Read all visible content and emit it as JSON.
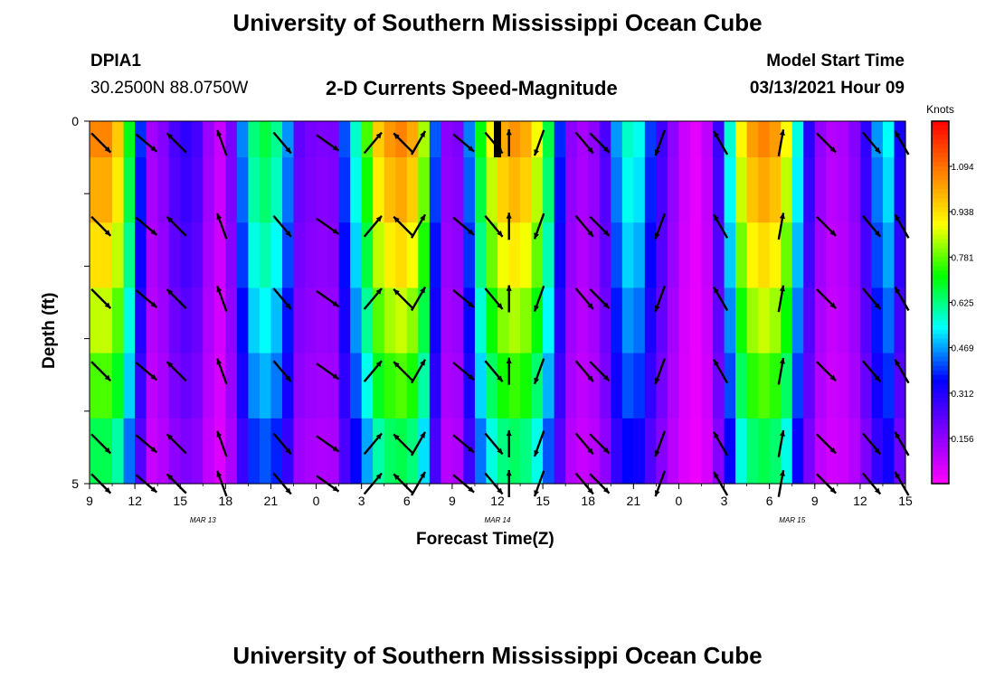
{
  "header": {
    "title_top": "University of Southern Mississippi Ocean Cube",
    "title_bottom": "University of Southern Mississippi Ocean Cube",
    "station_id": "DPIA1",
    "station_coords": "30.2500N 88.0750W",
    "plot_title": "2-D Currents Speed-Magnitude",
    "model_start_label": "Model Start Time",
    "model_start_value": "03/13/2021 Hour 09"
  },
  "chart_data": {
    "type": "heatmap",
    "title": "2-D Currents Speed-Magnitude",
    "xlabel": "Forecast Time(Z)",
    "ylabel": "Depth (ft)",
    "x_ticks": [
      "9",
      "12",
      "15",
      "18",
      "21",
      "0",
      "3",
      "6",
      "9",
      "12",
      "15",
      "18",
      "21",
      "0",
      "3",
      "6",
      "9",
      "12",
      "15"
    ],
    "x_range_hours": [
      0,
      54
    ],
    "date_labels": [
      {
        "label": "MAR 13",
        "hour": 7.5
      },
      {
        "label": "MAR 14",
        "hour": 27
      },
      {
        "label": "MAR 15",
        "hour": 46.5
      }
    ],
    "y_ticks": [
      "0",
      "5"
    ],
    "ylim": [
      0,
      5
    ],
    "colorbar": {
      "unit": "Knots",
      "tick_labels": [
        "1.094",
        "0.938",
        "0.781",
        "0.625",
        "0.469",
        "0.312",
        "0.156"
      ],
      "tick_values": [
        1.094,
        0.938,
        0.781,
        0.625,
        0.469,
        0.312,
        0.156
      ],
      "range": [
        0,
        1.25
      ]
    },
    "depth_layers": 5,
    "time_columns": 72,
    "surface_speed_by_hour": [
      1.05,
      1.08,
      0.95,
      0.55,
      0.12,
      0.18,
      0.3,
      0.28,
      0.12,
      0.05,
      0.42,
      0.66,
      0.68,
      0.5,
      0.18,
      0.2,
      0.15,
      0.45,
      0.65,
      0.95,
      1.05,
      1.08,
      0.9,
      0.35,
      0.05,
      0.4,
      0.75,
      0.98,
      1.05,
      1.0,
      0.82,
      0.42,
      0.13,
      0.12,
      0.22,
      0.5,
      0.62,
      0.42,
      0.25,
      0.1,
      0.03,
      0.1,
      0.38,
      0.88,
      1.05,
      1.08,
      0.95,
      0.5,
      0.18,
      0.1,
      0.12,
      0.2,
      0.45,
      0.55,
      0.2
    ],
    "layer_factors": [
      1.0,
      0.95,
      0.88,
      0.8,
      0.72,
      0.62
    ],
    "missing_data_marker": {
      "hour": 27.0,
      "depth_ft": 0.5,
      "color": "#000000"
    },
    "arrow_columns_hours": [
      1,
      4,
      6,
      9,
      13,
      16,
      19,
      21,
      22,
      25,
      27,
      28,
      30,
      33,
      34,
      38,
      42,
      46,
      49,
      52,
      54
    ],
    "arrow_directions_deg": [
      135,
      130,
      315,
      340,
      140,
      125,
      40,
      315,
      30,
      130,
      140,
      0,
      200,
      140,
      135,
      200,
      330,
      10,
      135,
      140,
      330
    ],
    "colors": {
      "scale": [
        "#ff00ff",
        "#8000ff",
        "#0000ff",
        "#00ffff",
        "#00ff00",
        "#ffff00",
        "#ff8000",
        "#ff0000"
      ]
    }
  },
  "annotations": {
    "date_mar13": "MAR 13",
    "date_mar14": "MAR 14",
    "date_mar15": "MAR 15"
  }
}
